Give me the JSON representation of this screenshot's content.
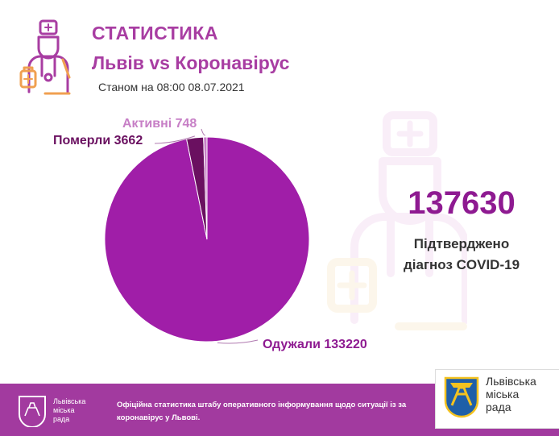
{
  "header": {
    "title": "СТАТИСТИКА",
    "subtitle": "Львів vs Коронавірус",
    "date_line": "Станом на 08:00 08.07.2021"
  },
  "total": {
    "value": "137630",
    "label_line1": "Підтверджено",
    "label_line2": "діагноз COVID-19"
  },
  "chart_data": {
    "type": "pie",
    "slices": [
      {
        "label": "Одужали",
        "value": 133220,
        "color": "#a01ea8",
        "text": "Одужали 133220"
      },
      {
        "label": "Померли",
        "value": 3662,
        "color": "#6a1060",
        "text": "Померли 3662"
      },
      {
        "label": "Активні",
        "value": 748,
        "color": "#c77fc6",
        "text": "Активні 748"
      }
    ],
    "title": "",
    "legend": "none"
  },
  "footer": {
    "city_name_line1": "Львівська",
    "city_name_line2": "міська",
    "city_name_line3": "рада",
    "note_line1": "Офіційна статистика штабу оперативного інформування щодо ситуації із за",
    "note_line2": "коронавірус у Львові."
  },
  "lviv_card": {
    "name_line1": "Львівська",
    "name_line2": "міська",
    "name_line3": "рада"
  },
  "colors": {
    "brand": "#a83da2",
    "footer": "#a23a9f",
    "accent_orange": "#f0a050"
  },
  "icons": {
    "header_icon": "doctor-icon",
    "watermark_icon": "doctor-watermark-icon",
    "footer_icon": "lviv-coat-of-arms-icon"
  }
}
